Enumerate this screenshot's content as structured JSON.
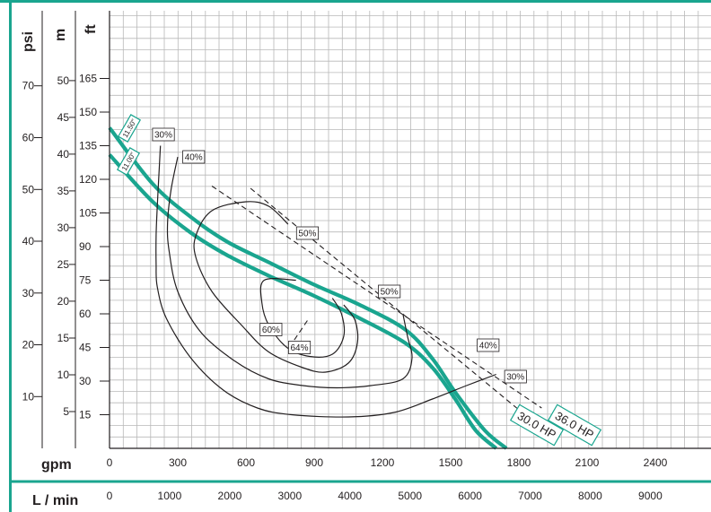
{
  "chart_data": {
    "type": "line",
    "title": "",
    "accent_color": "#1aa58f",
    "frame_color": "#1aa58f",
    "grid": true,
    "y_axes": {
      "psi": {
        "label": "psi",
        "ticks": [
          "70",
          "60",
          "50",
          "40",
          "30",
          "20",
          "10"
        ]
      },
      "m": {
        "label": "m",
        "ticks": [
          "50",
          "45",
          "40",
          "35",
          "30",
          "25",
          "20",
          "15",
          "10",
          "5"
        ]
      },
      "ft": {
        "label": "ft",
        "ticks": [
          "165",
          "150",
          "135",
          "120",
          "105",
          "90",
          "75",
          "60",
          "45",
          "30",
          "15"
        ]
      }
    },
    "x_axes": {
      "gpm": {
        "label": "gpm",
        "ticks": [
          "0",
          "300",
          "600",
          "900",
          "1200",
          "1500",
          "1800",
          "2100",
          "2400"
        ]
      },
      "l_min": {
        "label": "L / min",
        "ticks": [
          "0",
          "1000",
          "2000",
          "3000",
          "4000",
          "5000",
          "6000",
          "7000",
          "8000",
          "9000"
        ]
      }
    },
    "xlim_gpm": [
      0,
      2400
    ],
    "ylim_ft": [
      0,
      180
    ],
    "series": [
      {
        "name": "11.50\"",
        "kind": "head",
        "color": "#1aa58f",
        "points": [
          [
            0,
            143
          ],
          [
            190,
            118
          ],
          [
            360,
            103
          ],
          [
            520,
            92
          ],
          [
            700,
            83
          ],
          [
            900,
            73
          ],
          [
            1100,
            64
          ],
          [
            1300,
            53
          ],
          [
            1420,
            40
          ],
          [
            1520,
            25
          ],
          [
            1650,
            8
          ],
          [
            1745,
            0
          ]
        ]
      },
      {
        "name": "11.00\"",
        "kind": "head",
        "color": "#1aa58f",
        "points": [
          [
            0,
            131
          ],
          [
            190,
            110
          ],
          [
            360,
            96
          ],
          [
            520,
            86
          ],
          [
            700,
            77
          ],
          [
            900,
            68
          ],
          [
            1100,
            58
          ],
          [
            1300,
            47
          ],
          [
            1420,
            36
          ],
          [
            1520,
            22
          ],
          [
            1610,
            8
          ],
          [
            1700,
            0
          ]
        ]
      },
      {
        "name": "30%",
        "kind": "efficiency",
        "color": "#231f20",
        "labels": [
          "30%",
          "30%"
        ],
        "points": [
          [
            224,
            135
          ],
          [
            217,
            122
          ],
          [
            210,
            108
          ],
          [
            205,
            95
          ],
          [
            205,
            82
          ],
          [
            210,
            72
          ],
          [
            250,
            58
          ],
          [
            360,
            40
          ],
          [
            500,
            26
          ],
          [
            650,
            18
          ],
          [
            800,
            15
          ],
          [
            1050,
            14
          ],
          [
            1250,
            16
          ],
          [
            1420,
            22
          ],
          [
            1570,
            28
          ],
          [
            1700,
            33
          ]
        ]
      },
      {
        "name": "40%",
        "kind": "efficiency",
        "color": "#231f20",
        "labels": [
          "40%",
          "40%"
        ],
        "points": [
          [
            300,
            130
          ],
          [
            270,
            115
          ],
          [
            255,
            100
          ],
          [
            262,
            88
          ],
          [
            300,
            70
          ],
          [
            400,
            52
          ],
          [
            550,
            39
          ],
          [
            700,
            31
          ],
          [
            850,
            28
          ],
          [
            1000,
            27
          ],
          [
            1150,
            28
          ],
          [
            1290,
            31
          ],
          [
            1330,
            40
          ],
          [
            1310,
            50
          ],
          [
            1290,
            60
          ]
        ]
      },
      {
        "name": "50%",
        "kind": "efficiency",
        "color": "#231f20",
        "labels": [
          "50%",
          "50%"
        ],
        "points": [
          [
            785,
            100
          ],
          [
            700,
            108
          ],
          [
            600,
            110
          ],
          [
            450,
            106
          ],
          [
            380,
            95
          ],
          [
            380,
            85
          ],
          [
            450,
            70
          ],
          [
            580,
            55
          ],
          [
            700,
            43
          ],
          [
            850,
            36
          ],
          [
            950,
            34
          ],
          [
            1050,
            38
          ],
          [
            1090,
            47
          ],
          [
            1080,
            57
          ],
          [
            1030,
            64
          ]
        ]
      },
      {
        "name": "60%",
        "kind": "efficiency",
        "color": "#231f20",
        "labels": [
          "60%"
        ],
        "points": [
          [
            820,
            75
          ],
          [
            680,
            75
          ],
          [
            670,
            65
          ],
          [
            700,
            55
          ],
          [
            780,
            45
          ],
          [
            880,
            41
          ],
          [
            980,
            42
          ],
          [
            1030,
            50
          ],
          [
            1020,
            60
          ],
          [
            980,
            67
          ]
        ]
      },
      {
        "name": "36.0 HP",
        "kind": "power",
        "color": "#231f20",
        "dashed": true,
        "points": [
          [
            450,
            117
          ],
          [
            1900,
            18
          ]
        ]
      },
      {
        "name": "30.0 HP",
        "kind": "power",
        "color": "#231f20",
        "dashed": true,
        "points": [
          [
            620,
            116
          ],
          [
            1850,
            13
          ]
        ]
      }
    ],
    "annotations": [
      "30%",
      "40%",
      "50%",
      "50%",
      "60%",
      "64%",
      "40%",
      "30%",
      "30.0 HP",
      "36.0 HP",
      "11.50\"",
      "11.00\""
    ]
  }
}
